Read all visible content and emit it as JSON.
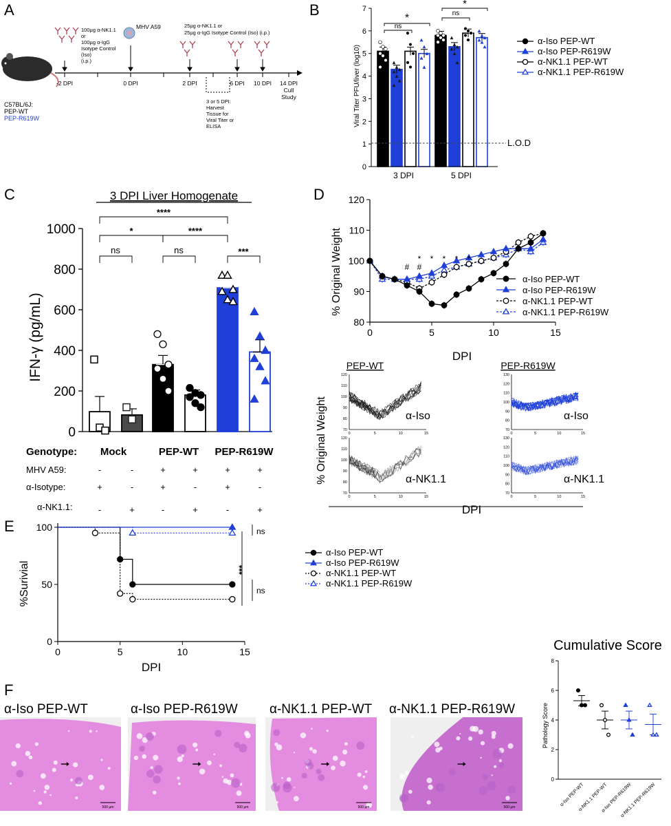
{
  "panels": {
    "A": "A",
    "B": "B",
    "C": "C",
    "D": "D",
    "E": "E",
    "F": "F"
  },
  "colors": {
    "black": "#000000",
    "blue": "#1f3fd8",
    "dark_gray": "#4a4a4a",
    "liver_pink": "#e48ce0",
    "liver_bg": "#efefef"
  },
  "timeline": {
    "mouse_label": [
      "C57BL/6J:",
      "PEP-WT",
      "PEP-R619W"
    ],
    "treat_first": [
      "100µg α-NK1.1",
      "or",
      "100µg α-IgG",
      "Isotype Control",
      "(Iso)",
      "(i.p.)"
    ],
    "virus": "MHV A59",
    "treat_repeat": [
      "25µg α-NK1.1 or",
      "25µg α-IgG Isotype Control (Iso) (i.p.)"
    ],
    "harvest": [
      "3 or 5 DPI:",
      "Harvest",
      "Tissue for",
      "Viral Titer or",
      "ELISA"
    ],
    "days": [
      {
        "label": "-2 DPI"
      },
      {
        "label": "0 DPI"
      },
      {
        "label": "2 DPI"
      },
      {
        "label": "6 DPI"
      },
      {
        "label": "10 DPI"
      },
      {
        "label": "14 DPI"
      }
    ],
    "cull": [
      "Cull",
      "Study"
    ]
  },
  "legend_main": [
    {
      "label": "α-Iso PEP-WT",
      "color": "#000000",
      "marker": "circle",
      "filled": true
    },
    {
      "label": "α-Iso PEP-R619W",
      "color": "#1f3fd8",
      "marker": "triangle",
      "filled": true
    },
    {
      "label": "α-NK1.1 PEP-WT",
      "color": "#000000",
      "marker": "circle",
      "filled": false
    },
    {
      "label": "α-NK1.1 PEP-R619W",
      "color": "#1f3fd8",
      "marker": "triangle",
      "filled": false
    }
  ],
  "chart_data": [
    {
      "id": "B",
      "type": "bar",
      "ylabel": "Viral Titer PFU/liver (log10)",
      "ylim": [
        0,
        7
      ],
      "yticks": [
        0,
        1,
        2,
        3,
        4,
        5,
        6,
        7
      ],
      "categories": [
        "3 DPI",
        "5 DPI"
      ],
      "series": [
        {
          "name": "α-Iso PEP-WT",
          "values": [
            5.1,
            5.8
          ]
        },
        {
          "name": "α-Iso PEP-R619W",
          "values": [
            4.3,
            5.3
          ]
        },
        {
          "name": "α-NK1.1 PEP-WT",
          "values": [
            5.1,
            5.9
          ]
        },
        {
          "name": "α-NK1.1 PEP-R619W",
          "values": [
            5.0,
            5.7
          ]
        }
      ],
      "points": [
        [
          [
            5.5,
            5.3,
            5.2,
            5.0,
            4.9,
            4.7,
            4.4
          ],
          [
            6.0,
            5.9,
            5.8,
            5.8,
            5.7,
            5.6,
            5.5
          ]
        ],
        [
          [
            4.6,
            4.4,
            4.3,
            4.2,
            4.0,
            3.8,
            3.6
          ],
          [
            5.7,
            5.4,
            5.3,
            5.2,
            5.0,
            4.6
          ]
        ],
        [
          [
            5.9,
            5.4,
            5.0,
            4.6,
            4.4
          ],
          [
            6.1,
            6.0,
            5.9,
            5.8,
            5.6
          ]
        ],
        [
          [
            5.6,
            5.3,
            5.0,
            4.8,
            4.4
          ],
          [
            6.0,
            5.8,
            5.7,
            5.6,
            5.5,
            5.3
          ]
        ]
      ],
      "lod": {
        "value": 1,
        "label": "L.O.D"
      },
      "sig": [
        {
          "label": "ns"
        },
        {
          "label": "*"
        },
        {
          "label": "ns"
        },
        {
          "label": "*"
        }
      ]
    },
    {
      "id": "C",
      "type": "bar",
      "title": "3 DPI Liver Homogenate",
      "ylabel": "IFN-γ (pg/mL)",
      "ylim": [
        0,
        1000
      ],
      "yticks": [
        0,
        200,
        400,
        600,
        800,
        1000
      ],
      "categories": [
        "Mock",
        "Mock",
        "PEP-WT",
        "PEP-WT",
        "PEP-R619W",
        "PEP-R619W"
      ],
      "values": [
        98,
        82,
        330,
        180,
        708,
        392
      ],
      "errors": [
        75,
        30,
        45,
        25,
        35,
        60
      ],
      "points": [
        [
          355,
          20,
          5
        ],
        [
          120,
          60
        ],
        [
          480,
          430,
          330,
          310,
          260,
          200
        ],
        [
          215,
          190,
          180,
          170,
          140,
          120
        ],
        [
          770,
          770,
          700,
          690,
          650,
          640
        ],
        [
          590,
          470,
          400,
          360,
          320,
          250,
          160
        ]
      ],
      "genotype_label": "Genotype:",
      "genotypes": [
        "Mock",
        "PEP-WT",
        "PEP-R619W"
      ],
      "rows": [
        {
          "label": "MHV A59:",
          "values": [
            "-",
            "-",
            "+",
            "+",
            "+",
            "+"
          ]
        },
        {
          "label": "α-Isotype:",
          "values": [
            "+",
            "-",
            "+",
            "-",
            "+",
            "-"
          ]
        },
        {
          "label": "α-NK1.1:",
          "values": [
            "-",
            "+",
            "-",
            "+",
            "-",
            "+"
          ]
        }
      ],
      "sig": [
        {
          "label": "****"
        },
        {
          "label": "*"
        },
        {
          "label": "****"
        },
        {
          "label": "ns"
        },
        {
          "label": "ns"
        },
        {
          "label": "***"
        }
      ]
    },
    {
      "id": "D",
      "type": "line",
      "xlabel": "DPI",
      "ylabel": "% Original Weight",
      "xlim": [
        0,
        15
      ],
      "ylim": [
        80,
        120
      ],
      "xticks": [
        0,
        5,
        10,
        15
      ],
      "yticks": [
        80,
        90,
        100,
        110,
        120
      ],
      "x": [
        0,
        1,
        2,
        3,
        4,
        5,
        6,
        7,
        8,
        9,
        10,
        11,
        12,
        13,
        14
      ],
      "series": [
        {
          "name": "α-Iso PEP-WT",
          "values": [
            100,
            95,
            94,
            92,
            90,
            86,
            85.5,
            89,
            91,
            94,
            96,
            99,
            104,
            106,
            109
          ]
        },
        {
          "name": "α-Iso PEP-R619W",
          "values": [
            100,
            95,
            94,
            94,
            95,
            96,
            98.5,
            100,
            101,
            102,
            103,
            104,
            104,
            104,
            107
          ]
        },
        {
          "name": "α-NK1.1 PEP-WT",
          "values": [
            100,
            95,
            94,
            93,
            91,
            93,
            95.5,
            98,
            99,
            100,
            101,
            103,
            106,
            108,
            109
          ]
        },
        {
          "name": "α-NK1.1 PEP-R619W",
          "values": [
            100,
            94,
            94,
            94,
            94,
            95,
            97,
            98,
            99,
            100,
            101,
            102,
            104,
            103,
            106
          ]
        }
      ],
      "annotations": [
        {
          "x": 3,
          "label": "#"
        },
        {
          "x": 4,
          "label": "#"
        },
        {
          "x": 4,
          "label": "*"
        },
        {
          "x": 5,
          "label": "*"
        },
        {
          "x": 6,
          "label": "*"
        },
        {
          "x": 7,
          "label": "*"
        },
        {
          "x": 8,
          "label": "*"
        }
      ]
    },
    {
      "id": "D-small",
      "type": "line",
      "ylabel": "% Original Weight",
      "xlabel": "DPI",
      "col_titles": [
        "PEP-WT",
        "PEP-R619W"
      ],
      "row_labels": [
        "α-Iso",
        "α-NK1.1"
      ],
      "xlim": [
        0,
        15
      ],
      "ylim": [
        70,
        130
      ],
      "xticks": [
        0,
        5,
        10,
        15
      ],
      "yticks_left": [
        70,
        80,
        90,
        100,
        110,
        120
      ],
      "yticks_right": [
        70,
        80,
        90,
        100,
        110,
        120,
        130
      ]
    },
    {
      "id": "E",
      "type": "line",
      "xlabel": "DPI",
      "ylabel": "%Surivial",
      "xlim": [
        0,
        15
      ],
      "ylim": [
        0,
        100
      ],
      "xticks": [
        0,
        5,
        10,
        15
      ],
      "yticks": [
        0,
        50,
        100
      ],
      "series": [
        {
          "name": "α-Iso PEP-WT",
          "steps": [
            [
              0,
              100
            ],
            [
              5,
              72
            ],
            [
              6,
              50
            ],
            [
              14,
              50
            ]
          ]
        },
        {
          "name": "α-Iso PEP-R619W",
          "steps": [
            [
              0,
              100
            ],
            [
              14,
              100
            ]
          ]
        },
        {
          "name": "α-NK1.1 PEP-WT",
          "steps": [
            [
              0,
              100
            ],
            [
              3,
              95
            ],
            [
              5,
              42
            ],
            [
              6,
              37
            ],
            [
              14,
              37
            ]
          ]
        },
        {
          "name": "α-NK1.1 PEP-R619W",
          "steps": [
            [
              0,
              100
            ],
            [
              6,
              95
            ],
            [
              14,
              95
            ]
          ]
        }
      ],
      "sig": [
        {
          "label": "ns"
        },
        {
          "label": "***"
        },
        {
          "label": "ns"
        }
      ]
    },
    {
      "id": "F-score",
      "type": "scatter",
      "title": "Cumulative Score",
      "ylabel": "Pathology Score",
      "ylim": [
        0,
        8
      ],
      "yticks": [
        0,
        2,
        4,
        6,
        8
      ],
      "categories": [
        "α-Iso PEP-WT",
        "α-NK1.1 PEP-WT",
        "α-Iso PEP-R619W",
        "α-NK1.1 PEP-R619W"
      ],
      "means": [
        5.3,
        4.0,
        4.0,
        3.7
      ],
      "errors": [
        0.35,
        0.6,
        0.6,
        0.7
      ],
      "points": [
        [
          6.0,
          5.0,
          5.0
        ],
        [
          5.0,
          4.0,
          3.0
        ],
        [
          5.0,
          4.0,
          3.0
        ],
        [
          5.0,
          3.0,
          3.0
        ]
      ]
    }
  ],
  "histology": {
    "titles": [
      "α-Iso PEP-WT",
      "α-Iso PEP-R619W",
      "α-NK1.1 PEP-WT",
      "α-NK1.1 PEP-R619W"
    ],
    "scale": "500 µm"
  }
}
